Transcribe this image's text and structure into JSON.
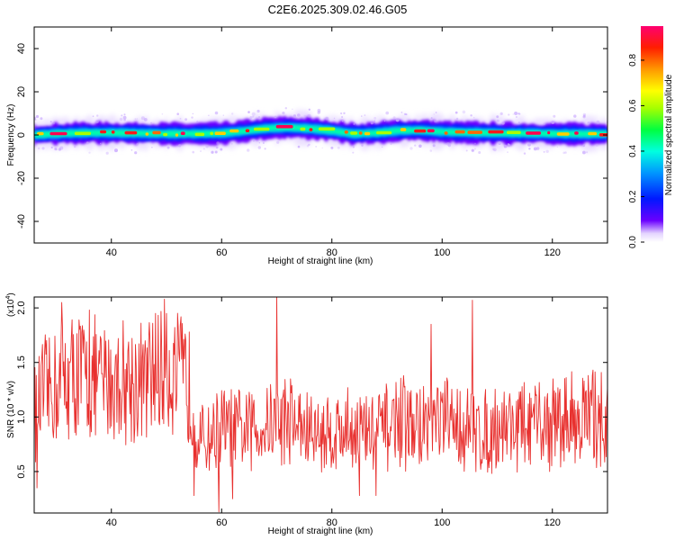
{
  "figure": {
    "title": "C2E6.2025.309.02.46.G05"
  },
  "chart_data": [
    {
      "type": "heatmap",
      "xlabel": "Height of straight line (km)",
      "ylabel": "Frequency (Hz)",
      "xlim": [
        26,
        130
      ],
      "ylim": [
        -50,
        50
      ],
      "xticks": [
        40,
        60,
        80,
        100,
        120
      ],
      "yticks": [
        -40,
        -20,
        0,
        20,
        40
      ],
      "colorbar": {
        "label": "Normalized spectral amplitude",
        "range": [
          0,
          0.95
        ],
        "ticks": [
          "0.0",
          "0.2",
          "0.4",
          "0.6",
          "0.8"
        ]
      },
      "ridge_center_hz": [
        [
          26,
          0
        ],
        [
          30,
          0.6
        ],
        [
          35,
          1
        ],
        [
          40,
          1
        ],
        [
          45,
          0.8
        ],
        [
          50,
          0.6
        ],
        [
          55,
          0.6
        ],
        [
          60,
          0.8
        ],
        [
          64,
          1.8
        ],
        [
          68,
          3
        ],
        [
          72,
          3.5
        ],
        [
          76,
          3
        ],
        [
          80,
          2
        ],
        [
          84,
          0.5
        ],
        [
          88,
          1
        ],
        [
          92,
          2
        ],
        [
          96,
          2.2
        ],
        [
          100,
          1.5
        ],
        [
          104,
          1.2
        ],
        [
          108,
          1
        ],
        [
          112,
          0.8
        ],
        [
          116,
          0.8
        ],
        [
          120,
          0.6
        ],
        [
          125,
          0.5
        ],
        [
          130,
          0.5
        ]
      ],
      "ridge_halfwidth_hz": 5,
      "grid": false
    },
    {
      "type": "line",
      "xlabel": "Height of straight line (km)",
      "ylabel": "SNR (10 * v/v)",
      "yscale_label": "(x10^4)",
      "xlim": [
        26,
        130
      ],
      "ylim": [
        0.12,
        2.1
      ],
      "xticks": [
        40,
        60,
        80,
        100,
        120
      ],
      "yticks": [
        0.5,
        1.0,
        1.5,
        2.0
      ],
      "ytick_labels": [
        "0.5",
        "1.0",
        "1.5",
        "2.0"
      ],
      "color": "#e8302e",
      "envelope_x": [
        26,
        30,
        34,
        38,
        42,
        46,
        50,
        54,
        56,
        60,
        64,
        68,
        72,
        76,
        80,
        84,
        88,
        92,
        96,
        100,
        104,
        108,
        112,
        116,
        120,
        125,
        130
      ],
      "envelope_y": [
        1.1,
        1.3,
        1.4,
        1.3,
        1.35,
        1.3,
        1.45,
        1.3,
        0.75,
        0.9,
        0.85,
        0.95,
        1.0,
        0.85,
        0.85,
        0.9,
        0.85,
        0.95,
        0.9,
        0.95,
        0.9,
        0.85,
        0.95,
        0.9,
        0.95,
        1.0,
        1.0
      ],
      "peaks": [
        [
          31,
          2.05
        ],
        [
          36,
          1.98
        ],
        [
          48,
          1.95
        ],
        [
          50,
          1.95
        ],
        [
          70,
          2.1
        ],
        [
          98,
          1.85
        ],
        [
          105.5,
          2.07
        ]
      ],
      "troughs": [
        [
          26.5,
          0.35
        ],
        [
          55,
          0.28
        ],
        [
          59.5,
          0.12
        ],
        [
          62,
          0.25
        ],
        [
          85,
          0.28
        ],
        [
          88,
          0.28
        ]
      ],
      "grid": false
    }
  ]
}
